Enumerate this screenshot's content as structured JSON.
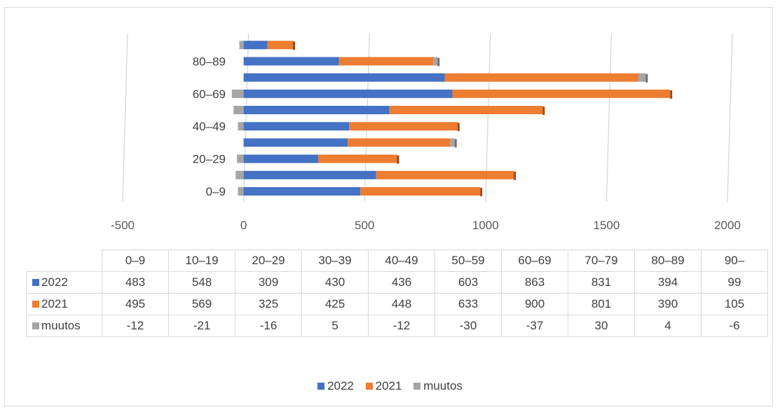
{
  "colors": {
    "s2022": "#4472C4",
    "s2021": "#ED7D31",
    "muutos": "#A5A5A5",
    "grid": "#d9d9d9"
  },
  "chart_data": {
    "type": "bar",
    "orientation": "horizontal",
    "stacked": true,
    "categories": [
      "0–9",
      "10–19",
      "20–29",
      "30–39",
      "40–49",
      "50–59",
      "60–69",
      "70–79",
      "80–89",
      "90–"
    ],
    "visible_category_labels": [
      "0–9",
      "20–29",
      "40–49",
      "60–69",
      "80–89"
    ],
    "series": [
      {
        "name": "2022",
        "values": [
          483,
          548,
          309,
          430,
          436,
          603,
          863,
          831,
          394,
          99
        ]
      },
      {
        "name": "2021",
        "values": [
          495,
          569,
          325,
          425,
          448,
          633,
          900,
          801,
          390,
          105
        ]
      },
      {
        "name": "muutos",
        "values": [
          -12,
          -21,
          -16,
          5,
          -12,
          -30,
          -37,
          30,
          4,
          -6
        ]
      }
    ],
    "xlim": [
      -500,
      2000
    ],
    "xticks": [
      "-500",
      "0",
      "500",
      "1000",
      "1500",
      "2000"
    ],
    "grid": true,
    "legend_position": "bottom",
    "data_table": true
  },
  "table": {
    "headers": [
      "0–9",
      "10–19",
      "20–29",
      "30–39",
      "40–49",
      "50–59",
      "60–69",
      "70–79",
      "80–89",
      "90–"
    ],
    "rows": [
      {
        "label": "2022",
        "values": [
          "483",
          "548",
          "309",
          "430",
          "436",
          "603",
          "863",
          "831",
          "394",
          "99"
        ]
      },
      {
        "label": "2021",
        "values": [
          "495",
          "569",
          "325",
          "425",
          "448",
          "633",
          "900",
          "801",
          "390",
          "105"
        ]
      },
      {
        "label": "muutos",
        "values": [
          "-12",
          "-21",
          "-16",
          "5",
          "-12",
          "-30",
          "-37",
          "30",
          "4",
          "-6"
        ]
      }
    ]
  },
  "legend": [
    "2022",
    "2021",
    "muutos"
  ]
}
